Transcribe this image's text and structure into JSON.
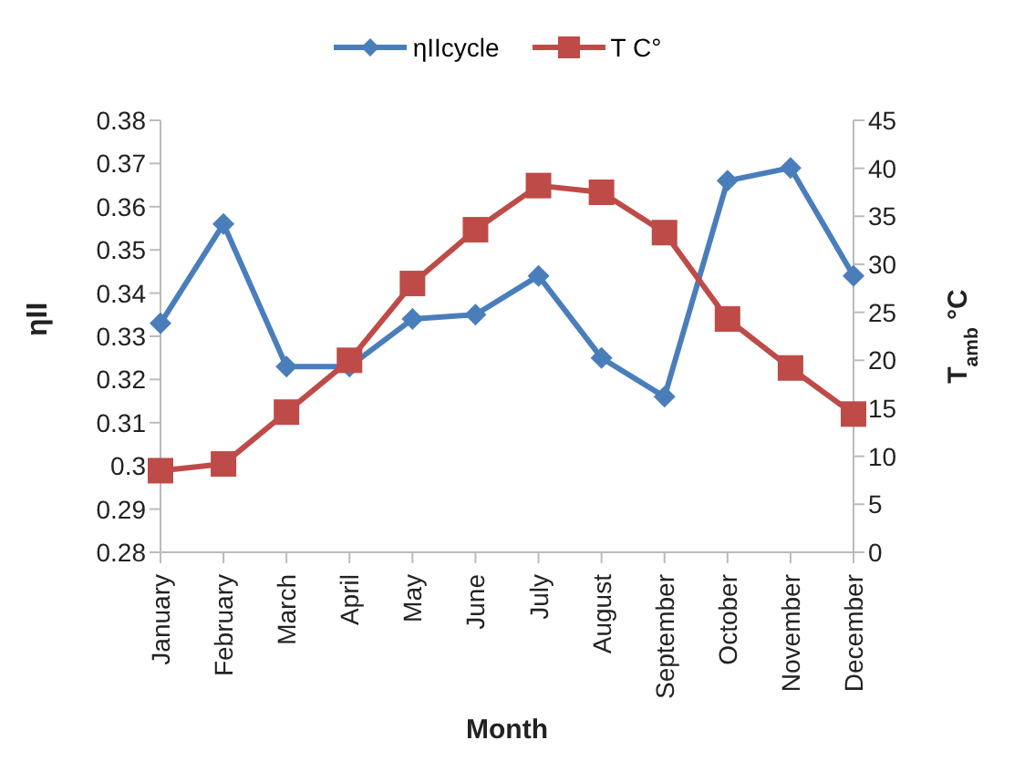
{
  "chart_data": {
    "type": "line",
    "xlabel": "Month",
    "ylabel": "ηII",
    "y2label": "T$_{amb}$ °C",
    "categories": [
      "January",
      "February",
      "March",
      "April",
      "May",
      "June",
      "July",
      "August",
      "September",
      "October",
      "November",
      "December"
    ],
    "series": [
      {
        "name": "ηIIcycle",
        "color": "#4a7ebb",
        "marker": "diamond",
        "values": [
          0.333,
          0.356,
          0.323,
          0.323,
          0.334,
          0.335,
          0.344,
          0.325,
          0.316,
          0.366,
          0.369,
          0.344
        ]
      },
      {
        "name": "T C°",
        "color": "#be4b48",
        "marker": "square",
        "axis": "y2",
        "values": [
          8.5,
          9.2,
          14.6,
          20,
          28,
          33.6,
          38.2,
          37.5,
          33.3,
          24.3,
          19.2,
          14.4
        ]
      }
    ],
    "ylim": [
      0.28,
      0.38
    ],
    "yticks": [
      0.28,
      0.29,
      0.3,
      0.31,
      0.32,
      0.33,
      0.34,
      0.35,
      0.36,
      0.37,
      0.38
    ],
    "y2lim": [
      0,
      45
    ],
    "y2ticks": [
      0,
      5,
      10,
      15,
      20,
      25,
      30,
      35,
      40,
      45
    ],
    "legend": "top",
    "grid": false
  }
}
